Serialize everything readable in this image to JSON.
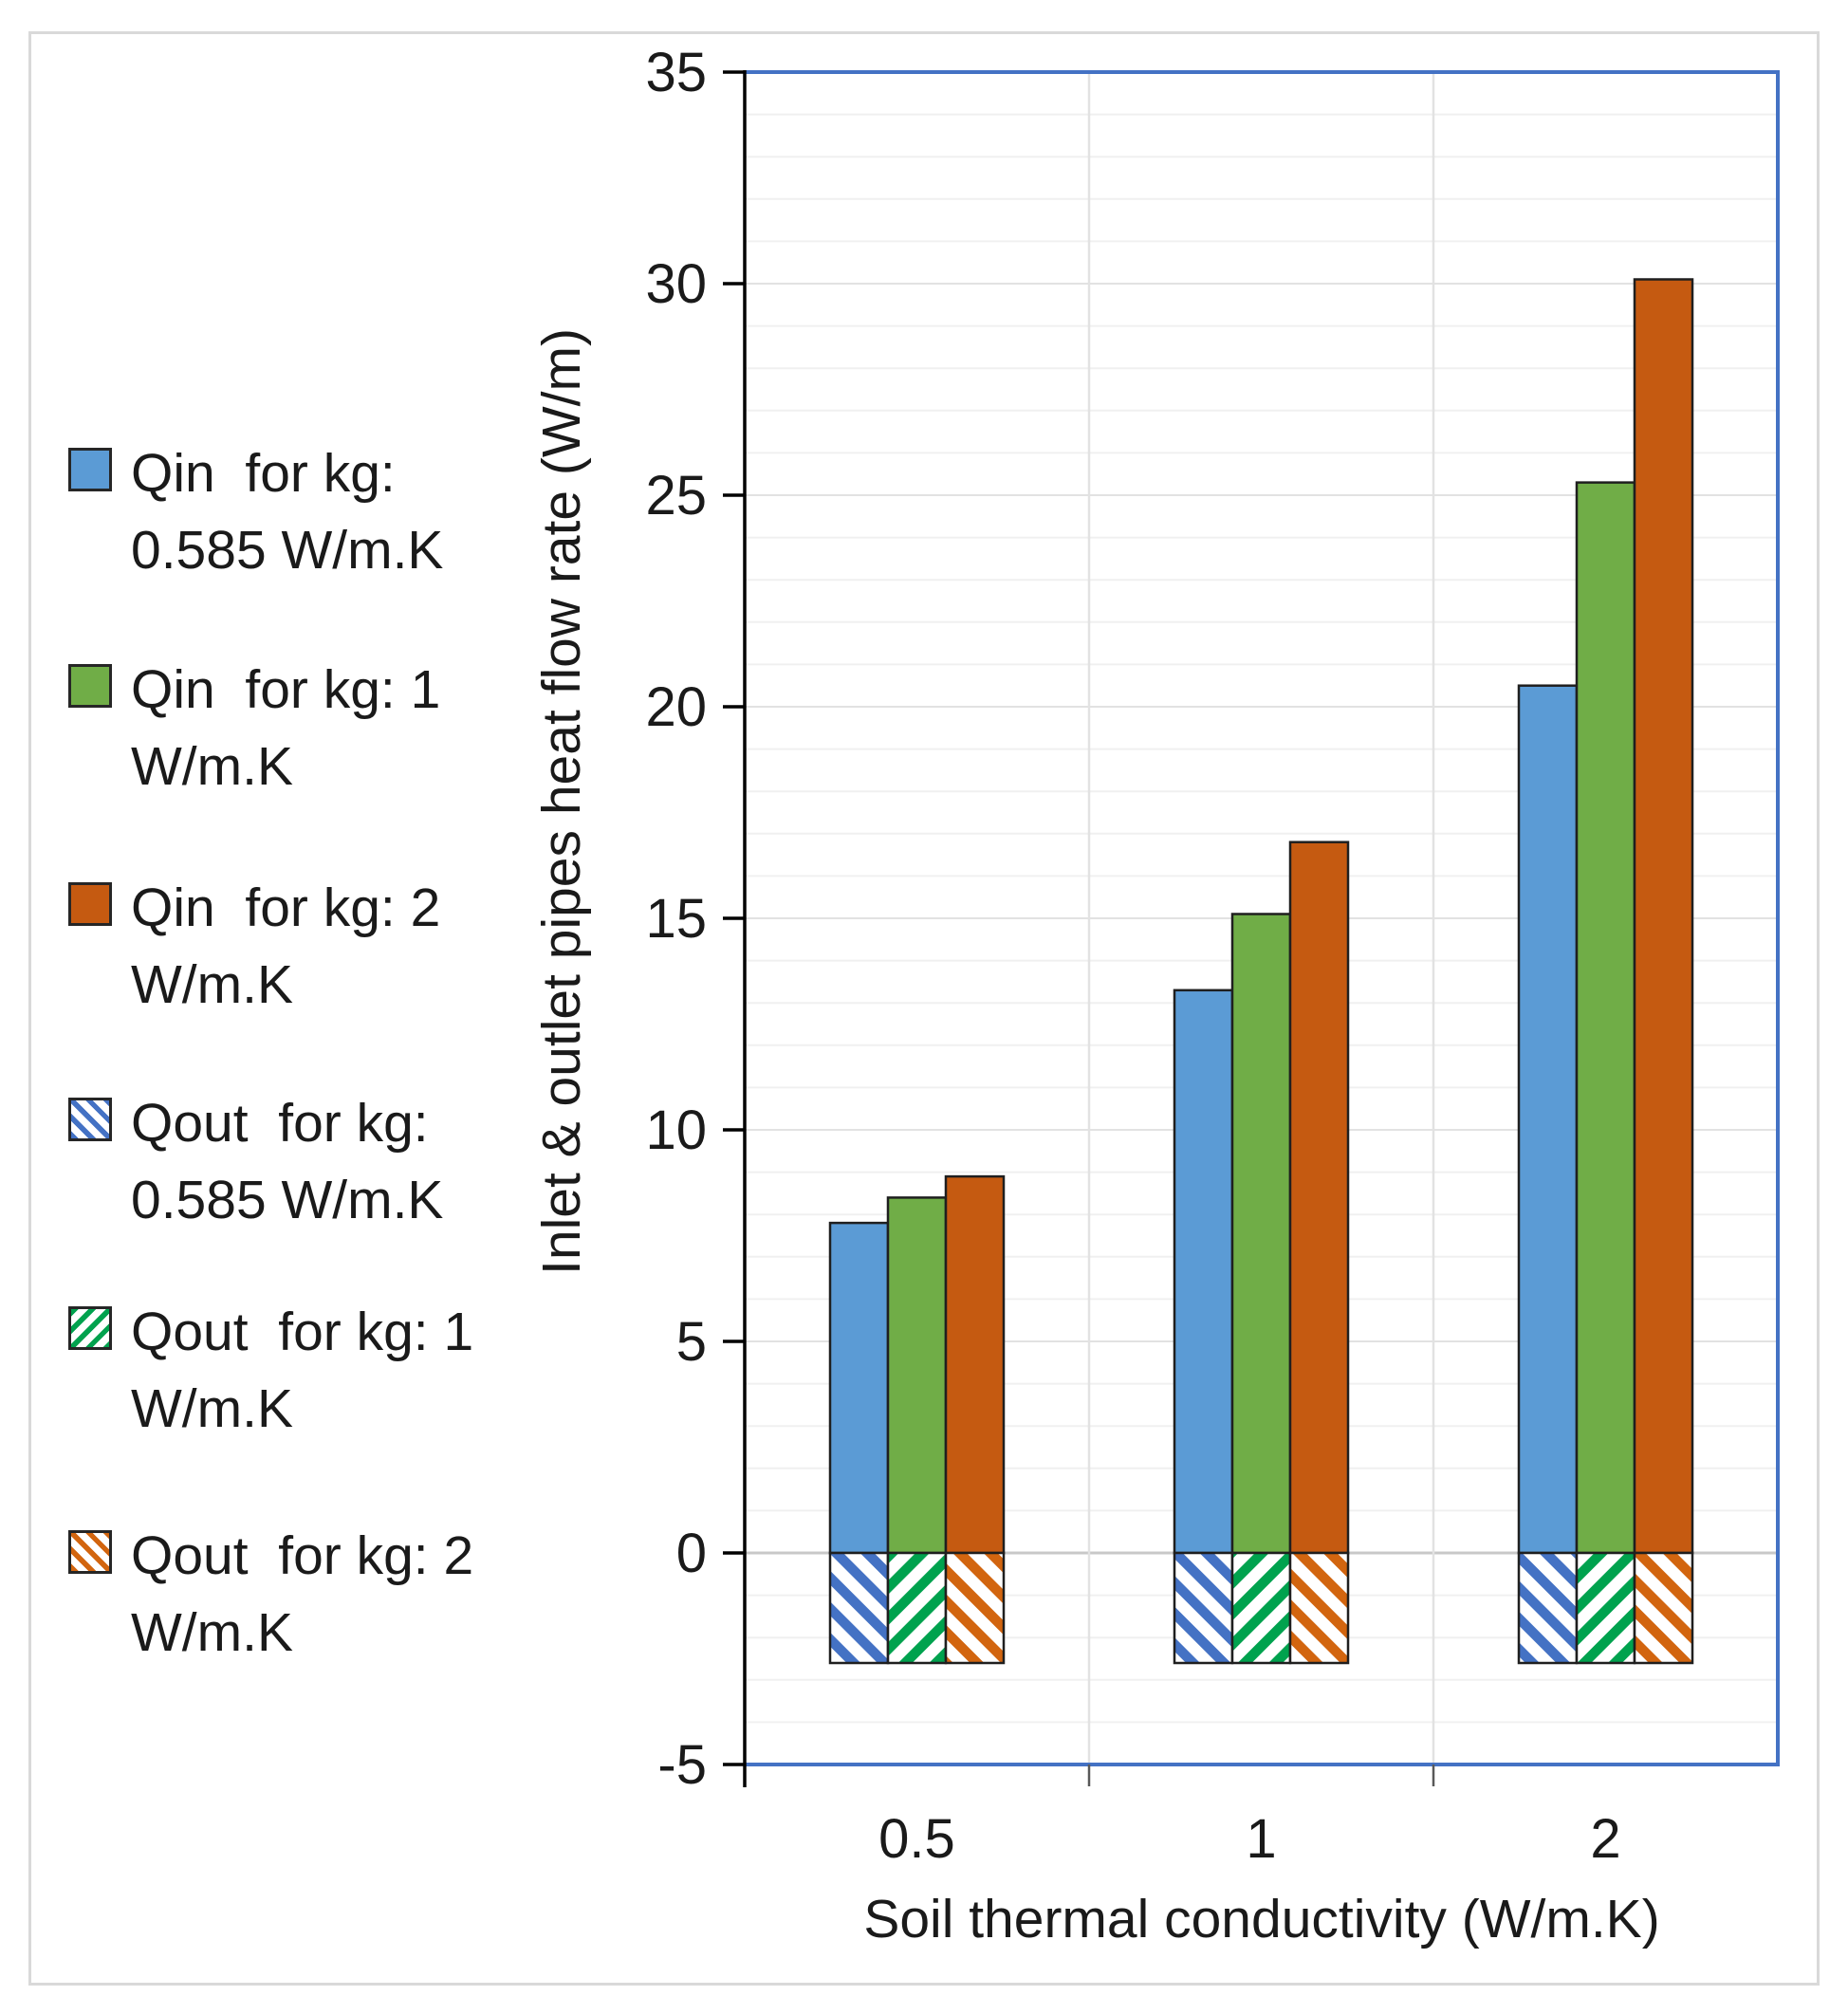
{
  "figure": {
    "background": "#ffffff",
    "frame_color": "#d9d9d9"
  },
  "chart_data": {
    "type": "bar",
    "title": "",
    "xlabel": "Soil thermal conductivity (W/m.K)",
    "ylabel": "Inlet & outlet pipes heat flow rate (W/m)",
    "categories": [
      "0.5",
      "1",
      "2"
    ],
    "ylim": [
      -5,
      35
    ],
    "yticks": [
      35,
      30,
      25,
      20,
      15,
      10,
      5,
      0,
      -5
    ],
    "minor_grid_step": 1,
    "grid": "on",
    "legend_position": "left",
    "series": [
      {
        "name": "Qin for kg: 0.585 W/m.K",
        "legend_lines": [
          "Qin  for kg:",
          "0.585 W/m.K"
        ],
        "fill": "solid",
        "color": "#5B9BD5",
        "values": [
          7.8,
          13.3,
          20.5
        ]
      },
      {
        "name": "Qin for kg: 1 W/m.K",
        "legend_lines": [
          "Qin  for kg: 1",
          "W/m.K"
        ],
        "fill": "solid",
        "color": "#70AD47",
        "values": [
          8.4,
          15.1,
          25.3
        ]
      },
      {
        "name": "Qin for kg: 2 W/m.K",
        "legend_lines": [
          "Qin  for kg: 2",
          "W/m.K"
        ],
        "fill": "solid",
        "color": "#C55A11",
        "values": [
          8.9,
          16.8,
          30.1
        ]
      },
      {
        "name": "Qout for kg: 0.585 W/m.K",
        "legend_lines": [
          "Qout  for kg:",
          "0.585 W/m.K"
        ],
        "fill": "hatch",
        "hatch_direction": "backslash",
        "color": "#4472C4",
        "values": [
          -2.6,
          -2.6,
          -2.6
        ]
      },
      {
        "name": "Qout for kg: 1 W/m.K",
        "legend_lines": [
          "Qout  for kg: 1",
          "W/m.K"
        ],
        "fill": "hatch",
        "hatch_direction": "slash",
        "color": "#00A24E",
        "values": [
          -2.6,
          -2.6,
          -2.6
        ]
      },
      {
        "name": "Qout for kg: 2 W/m.K",
        "legend_lines": [
          "Qout  for kg: 2",
          "W/m.K"
        ],
        "fill": "hatch",
        "hatch_direction": "backslash",
        "color": "#D2650F",
        "values": [
          -2.6,
          -2.6,
          -2.6
        ]
      }
    ],
    "style": {
      "plot_border": "#4472C4",
      "axis_line": "#000000",
      "gridline_minor": "#F0F0F0",
      "gridline_major": "#E2E2E2",
      "zero_line": "#C8C8C8",
      "bar_outline": "#1F1F1F",
      "x_tick_color": "#595959"
    }
  }
}
